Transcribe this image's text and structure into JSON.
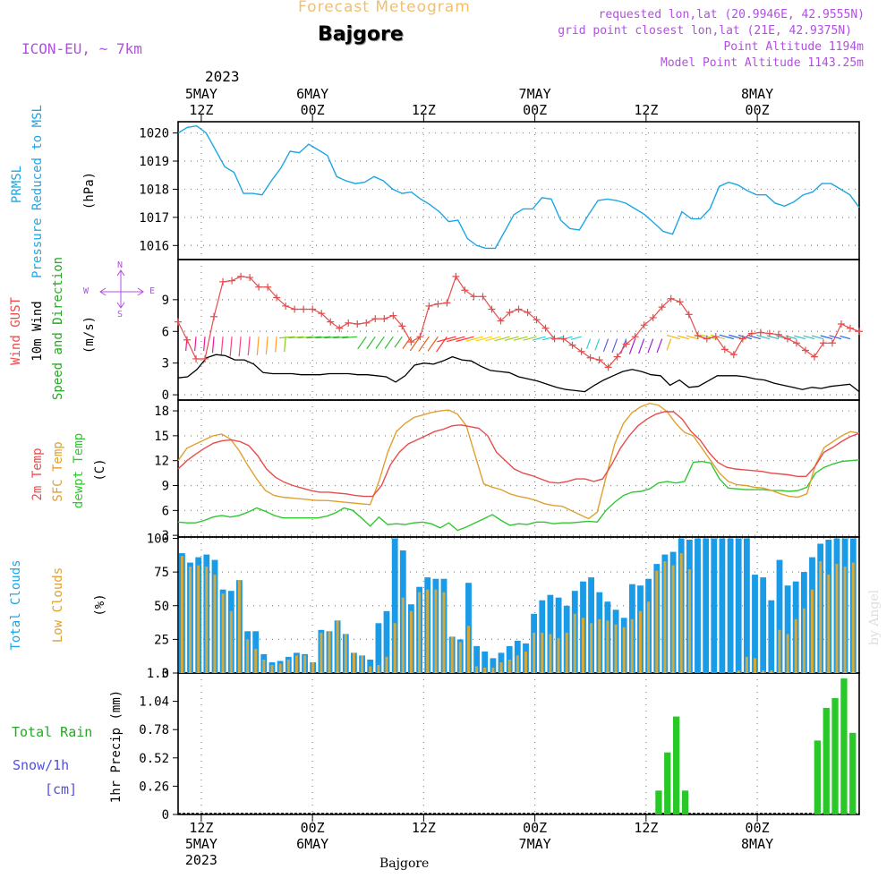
{
  "header": {
    "forecast_title": "Forecast Meteogram",
    "location": "Bajgore",
    "model": "ICON-EU, ~ 7km",
    "requested": "requested lon,lat (20.9946E, 42.9555N)",
    "grid_point": "grid point closest lon,lat (21E, 42.9375N)",
    "point_altitude": "Point Altitude 1194m",
    "model_altitude": "Model Point Altitude 1143.25m",
    "year_top": "2023",
    "footer_location": "Bajgore",
    "watermark": "by Angel"
  },
  "colors": {
    "pressure": "#1ca6e6",
    "gust": "#e84c4c",
    "wind": "#000000",
    "temp2m": "#e84c4c",
    "sfc": "#e0a030",
    "dew": "#30c830",
    "cloud_total": "#1a9be8",
    "cloud_low": "#d4a83c",
    "rain": "#28c828",
    "snow": "#5050e0",
    "label_green": "#22aa22",
    "label_purple": "#b050e0",
    "label_orange": "#f0c070"
  },
  "time_axis": {
    "top_labels": [
      {
        "t": 6,
        "l1": "5MAY",
        "l2": "12Z"
      },
      {
        "t": 18,
        "l1": "6MAY",
        "l2": "00Z"
      },
      {
        "t": 30,
        "l1": "",
        "l2": "12Z"
      },
      {
        "t": 42,
        "l1": "7MAY",
        "l2": "00Z"
      },
      {
        "t": 54,
        "l1": "",
        "l2": "12Z"
      },
      {
        "t": 66,
        "l1": "8MAY",
        "l2": "00Z"
      }
    ],
    "bottom_labels": [
      {
        "t": 6,
        "l1": "12Z",
        "l2": "5MAY",
        "l3": "2023"
      },
      {
        "t": 18,
        "l1": "00Z",
        "l2": "6MAY",
        "l3": ""
      },
      {
        "t": 30,
        "l1": "12Z",
        "l2": "",
        "l3": ""
      },
      {
        "t": 42,
        "l1": "00Z",
        "l2": "7MAY",
        "l3": ""
      },
      {
        "t": 54,
        "l1": "12Z",
        "l2": "",
        "l3": ""
      },
      {
        "t": 66,
        "l1": "00Z",
        "l2": "8MAY",
        "l3": ""
      }
    ]
  },
  "chart_data": [
    {
      "type": "line",
      "name": "pressure",
      "ylabel_main": "PRMSL",
      "ylabel_sub": "Pressure Reduced to MSL",
      "unit": "(hPa)",
      "ylim": [
        1015.5,
        1020.4
      ],
      "yticks": [
        1016,
        1017,
        1018,
        1019,
        1020
      ],
      "series": [
        {
          "name": "PRMSL",
          "values": [
            1020.0,
            1020.2,
            1020.25,
            1020.0,
            1019.4,
            1018.8,
            1018.6,
            1017.85,
            1017.85,
            1017.8,
            1018.3,
            1018.75,
            1019.35,
            1019.3,
            1019.6,
            1019.4,
            1019.2,
            1018.45,
            1018.3,
            1018.2,
            1018.25,
            1018.45,
            1018.3,
            1018.0,
            1017.85,
            1017.9,
            1017.65,
            1017.45,
            1017.2,
            1016.85,
            1016.9,
            1016.25,
            1016.0,
            1015.9,
            1015.9,
            1016.5,
            1017.1,
            1017.3,
            1017.3,
            1017.7,
            1017.65,
            1016.9,
            1016.6,
            1016.55,
            1017.1,
            1017.6,
            1017.65,
            1017.6,
            1017.5,
            1017.3,
            1017.1,
            1016.8,
            1016.5,
            1016.4,
            1017.2,
            1016.95,
            1016.95,
            1017.3,
            1018.1,
            1018.25,
            1018.15,
            1017.95,
            1017.8,
            1017.8,
            1017.5,
            1017.4,
            1017.55,
            1017.8,
            1017.9,
            1018.2,
            1018.2,
            1018.0,
            1017.8,
            1017.35
          ]
        }
      ]
    },
    {
      "type": "line",
      "name": "wind",
      "ylabel_gust": "Wind GUST",
      "ylabel_wind": "10m Wind",
      "ylabel_dir": "Speed and Direction",
      "unit": "(m/s)",
      "compass": {
        "n": "N",
        "s": "S",
        "w": "W",
        "e": "E"
      },
      "ylim": [
        -0.5,
        12.8
      ],
      "yticks": [
        0,
        3,
        6,
        9
      ],
      "series": [
        {
          "name": "Wind GUST",
          "values": [
            6.9,
            5.2,
            3.4,
            3.4,
            7.4,
            10.7,
            10.8,
            11.2,
            11.1,
            10.2,
            10.2,
            9.2,
            8.4,
            8.1,
            8.1,
            8.1,
            7.7,
            6.9,
            6.3,
            6.8,
            6.7,
            6.8,
            7.2,
            7.2,
            7.5,
            6.5,
            5.0,
            5.5,
            8.4,
            8.6,
            8.7,
            11.2,
            9.9,
            9.3,
            9.3,
            8.1,
            7.0,
            7.8,
            8.1,
            7.8,
            7.1,
            6.3,
            5.3,
            5.3,
            4.7,
            4.1,
            3.5,
            3.3,
            2.6,
            3.6,
            4.8,
            5.5,
            6.6,
            7.3,
            8.3,
            9.1,
            8.8,
            7.6,
            5.6,
            5.3,
            5.5,
            4.3,
            3.8,
            5.3,
            5.8,
            5.9,
            5.8,
            5.7,
            5.3,
            4.9,
            4.2,
            3.6,
            4.9,
            4.9,
            6.7,
            6.3,
            6.0
          ]
        },
        {
          "name": "10m Wind",
          "values": [
            1.6,
            1.7,
            2.4,
            3.5,
            3.8,
            3.7,
            3.3,
            3.3,
            2.9,
            2.1,
            2.0,
            2.0,
            2.0,
            1.9,
            1.9,
            1.9,
            2.0,
            2.0,
            2.0,
            1.9,
            1.9,
            1.8,
            1.7,
            1.2,
            1.8,
            2.8,
            3.0,
            2.9,
            3.2,
            3.6,
            3.3,
            3.2,
            2.7,
            2.3,
            2.2,
            2.1,
            1.7,
            1.5,
            1.3,
            1.0,
            0.7,
            0.5,
            0.4,
            0.3,
            0.9,
            1.4,
            1.8,
            2.2,
            2.4,
            2.2,
            1.9,
            1.8,
            0.9,
            1.4,
            0.7,
            0.8,
            1.3,
            1.8,
            1.8,
            1.8,
            1.7,
            1.5,
            1.4,
            1.1,
            0.9,
            0.7,
            0.5,
            0.7,
            0.6,
            0.8,
            0.9,
            1.0,
            0.3
          ]
        }
      ]
    },
    {
      "type": "line",
      "name": "temperature",
      "ylabel_t2m": "2m Temp",
      "ylabel_sfc": "SFC Temp",
      "ylabel_dew": "dewpt Temp",
      "unit": "(C)",
      "ylim": [
        2.8,
        19.3
      ],
      "yticks": [
        3,
        6,
        9,
        12,
        15,
        18
      ],
      "series": [
        {
          "name": "2m Temp",
          "values": [
            11.0,
            12.0,
            12.8,
            13.5,
            14.1,
            14.4,
            14.5,
            14.3,
            13.8,
            12.6,
            11.0,
            10.0,
            9.4,
            9.0,
            8.7,
            8.4,
            8.2,
            8.2,
            8.1,
            8.0,
            7.8,
            7.7,
            7.7,
            9.0,
            11.5,
            13.0,
            14.0,
            14.5,
            15.0,
            15.5,
            15.8,
            16.2,
            16.3,
            16.1,
            15.9,
            15.0,
            13.0,
            12.0,
            11.0,
            10.5,
            10.2,
            9.8,
            9.4,
            9.3,
            9.5,
            9.8,
            9.8,
            9.5,
            9.8,
            11.5,
            13.5,
            15.0,
            16.2,
            17.0,
            17.6,
            17.9,
            17.9,
            17.0,
            15.5,
            14.5,
            13.0,
            11.8,
            11.2,
            11.0,
            10.9,
            10.8,
            10.7,
            10.5,
            10.4,
            10.3,
            10.1,
            10.1,
            11.3,
            13.0,
            13.6,
            14.3,
            14.9,
            15.3
          ]
        },
        {
          "name": "SFC Temp",
          "values": [
            12.0,
            13.5,
            14.0,
            14.5,
            15.0,
            15.2,
            14.6,
            13.2,
            11.4,
            9.8,
            8.4,
            7.8,
            7.6,
            7.5,
            7.4,
            7.3,
            7.2,
            7.2,
            7.1,
            7.0,
            6.9,
            6.8,
            6.7,
            9.5,
            13.0,
            15.5,
            16.5,
            17.2,
            17.5,
            17.8,
            18.0,
            18.1,
            17.6,
            16.2,
            12.7,
            9.2,
            8.8,
            8.5,
            8.0,
            7.7,
            7.5,
            7.2,
            6.8,
            6.6,
            6.5,
            6.0,
            5.5,
            5.0,
            5.8,
            10.0,
            14.0,
            16.5,
            17.8,
            18.5,
            18.9,
            18.7,
            17.9,
            16.5,
            15.4,
            15.0,
            13.5,
            12.0,
            10.5,
            9.5,
            9.1,
            9.0,
            8.8,
            8.7,
            8.4,
            8.0,
            7.7,
            7.6,
            8.0,
            11.5,
            13.6,
            14.3,
            15.0,
            15.5,
            15.3
          ]
        },
        {
          "name": "dewpt Temp",
          "values": [
            4.6,
            4.5,
            4.5,
            4.8,
            5.2,
            5.4,
            5.2,
            5.4,
            5.8,
            6.3,
            5.9,
            5.4,
            5.1,
            5.1,
            5.1,
            5.1,
            5.1,
            5.3,
            5.7,
            6.3,
            6.0,
            5.1,
            4.1,
            5.2,
            4.3,
            4.4,
            4.3,
            4.5,
            4.6,
            4.4,
            3.9,
            4.5,
            3.6,
            4.0,
            4.5,
            5.0,
            5.5,
            4.8,
            4.2,
            4.4,
            4.3,
            4.6,
            4.6,
            4.4,
            4.5,
            4.5,
            4.6,
            4.7,
            4.6,
            6.0,
            7.0,
            7.8,
            8.2,
            8.3,
            8.6,
            9.3,
            9.5,
            9.3,
            9.5,
            11.8,
            11.9,
            11.7,
            9.8,
            8.7,
            8.6,
            8.5,
            8.5,
            8.5,
            8.4,
            8.4,
            8.3,
            8.4,
            8.8,
            10.5,
            11.2,
            11.6,
            11.9,
            12.0,
            12.1
          ]
        }
      ]
    },
    {
      "type": "bar",
      "name": "clouds",
      "ylabel_total": "Total Clouds",
      "ylabel_low": "Low Clouds",
      "unit": "(%)",
      "ylim": [
        0,
        101
      ],
      "yticks": [
        0,
        25,
        50,
        75,
        100
      ],
      "series": [
        {
          "name": "Total Clouds",
          "values": [
            89,
            82,
            86,
            88,
            84,
            62,
            61,
            69,
            31,
            31,
            14,
            8,
            9,
            12,
            15,
            14,
            8,
            32,
            31,
            39,
            29,
            15,
            13,
            10,
            37,
            46,
            100,
            91,
            51,
            64,
            71,
            70,
            70,
            27,
            25,
            67,
            20,
            16,
            11,
            15,
            20,
            24,
            22,
            44,
            54,
            58,
            56,
            50,
            61,
            68,
            71,
            60,
            53,
            47,
            41,
            66,
            65,
            70,
            81,
            88,
            90,
            100,
            99,
            100,
            100,
            100,
            100,
            100,
            100,
            100,
            73,
            71,
            54,
            84,
            65,
            68,
            75,
            86,
            96,
            99,
            100,
            100,
            100
          ]
        },
        {
          "name": "Low Clouds",
          "values": [
            87,
            79,
            80,
            79,
            73,
            59,
            46,
            69,
            25,
            18,
            10,
            6,
            7,
            10,
            13,
            13,
            8,
            30,
            31,
            39,
            29,
            15,
            13,
            5,
            6,
            12,
            37,
            56,
            46,
            60,
            62,
            62,
            60,
            27,
            23,
            35,
            5,
            4,
            4,
            8,
            10,
            13,
            16,
            30,
            30,
            29,
            26,
            30,
            44,
            41,
            37,
            40,
            39,
            36,
            34,
            40,
            46,
            53,
            76,
            83,
            80,
            89,
            77,
            0,
            0,
            0,
            0,
            0,
            2,
            12,
            11,
            2,
            2,
            32,
            29,
            40,
            48,
            62,
            83,
            73,
            81,
            79,
            82
          ]
        }
      ]
    },
    {
      "type": "bar",
      "name": "precip",
      "ylabel": "1hr Precip (mm)",
      "label_total_rain": "Total  Rain",
      "label_snow": "Snow/1h",
      "label_cm": "[cm]",
      "ylim": [
        0,
        1.3
      ],
      "yticks": [
        "0",
        "0.26",
        "0.52",
        "0.78",
        "1.04",
        "1.3"
      ],
      "series": [
        {
          "name": "Total Rain",
          "values": [
            0,
            0,
            0,
            0,
            0,
            0,
            0,
            0,
            0,
            0,
            0,
            0,
            0,
            0,
            0,
            0,
            0,
            0,
            0,
            0,
            0,
            0,
            0,
            0,
            0,
            0,
            0,
            0,
            0,
            0,
            0,
            0,
            0,
            0,
            0,
            0,
            0,
            0,
            0,
            0,
            0,
            0,
            0,
            0,
            0,
            0,
            0,
            0,
            0,
            0,
            0,
            0,
            0,
            0,
            0.22,
            0.57,
            0.9,
            0.22,
            0,
            0,
            0,
            0,
            0,
            0,
            0,
            0,
            0,
            0,
            0,
            0,
            0,
            0,
            0.68,
            0.98,
            1.07,
            1.25,
            0.75
          ]
        }
      ]
    }
  ]
}
